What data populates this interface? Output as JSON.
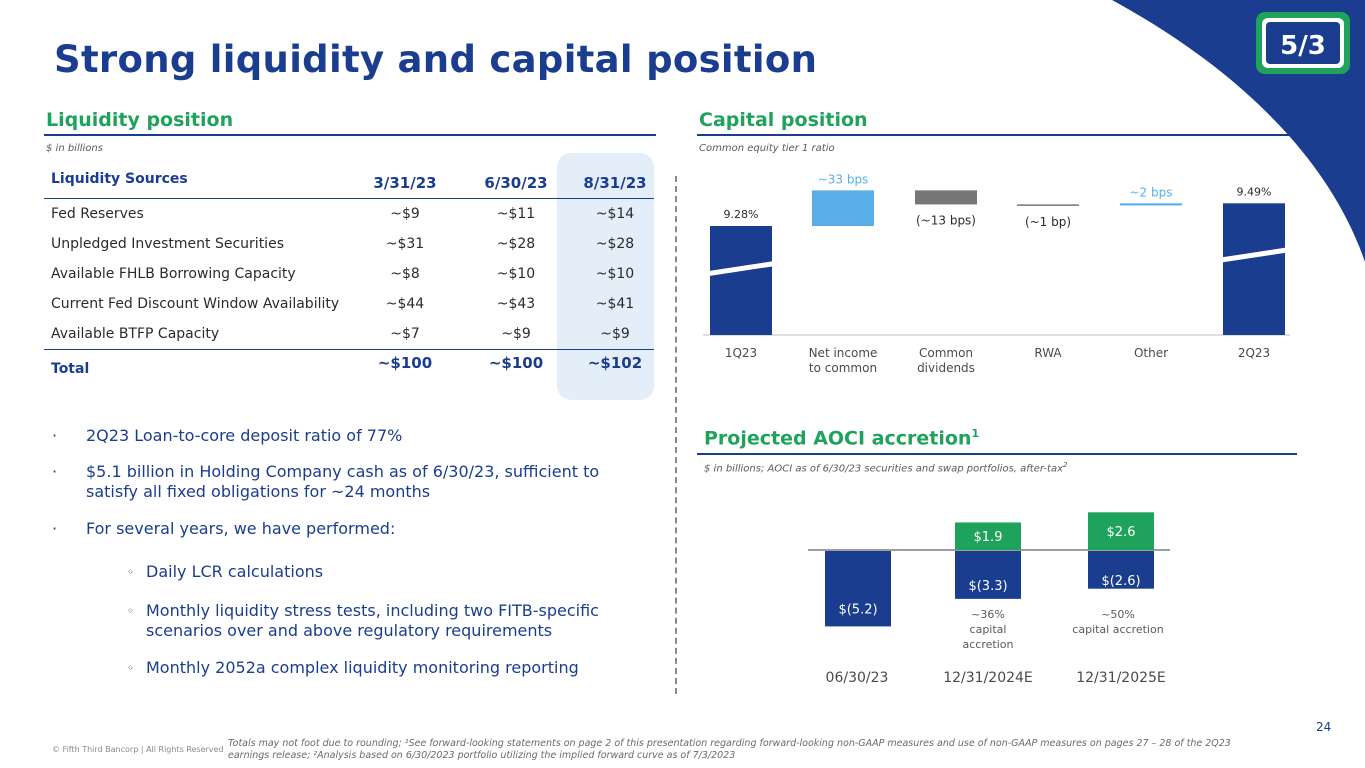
{
  "title": "Strong liquidity and capital position",
  "liquidity": {
    "heading": "Liquidity position",
    "subtitle": "$ in billions",
    "header": {
      "label": "Liquidity Sources",
      "cols": [
        "3/31/23",
        "6/30/23",
        "8/31/23"
      ]
    },
    "rows": [
      {
        "label": "Fed Reserves",
        "values": [
          "~$9",
          "~$11",
          "~$14"
        ]
      },
      {
        "label": "Unpledged Investment Securities",
        "values": [
          "~$31",
          "~$28",
          "~$28"
        ]
      },
      {
        "label": "Available FHLB Borrowing Capacity",
        "values": [
          "~$8",
          "~$10",
          "~$10"
        ]
      },
      {
        "label": "Current Fed Discount Window Availability",
        "values": [
          "~$44",
          "~$43",
          "~$41"
        ]
      },
      {
        "label": "Available BTFP Capacity",
        "values": [
          "~$7",
          "~$9",
          "~$9"
        ]
      }
    ],
    "total": {
      "label": "Total",
      "values": [
        "~$100",
        "~$100",
        "~$102"
      ]
    }
  },
  "bullets": {
    "b1": "2Q23 Loan-to-core deposit ratio of 77%",
    "b2": "$5.1 billion in Holding Company cash as of 6/30/23, sufficient to satisfy all fixed obligations for ~24 months",
    "b3": "For several years, we have performed:",
    "s1": "Daily LCR calculations",
    "s2": "Monthly liquidity stress tests, including two FITB-specific scenarios over and above regulatory requirements",
    "s3": "Monthly 2052a complex liquidity monitoring reporting"
  },
  "capital": {
    "heading": "Capital position",
    "subtitle": "Common equity tier 1 ratio"
  },
  "aoci": {
    "heading": "Projected AOCI accretion",
    "heading_sup": "1",
    "subtitle": "$ in billions; AOCI as of 6/30/23 securities and swap portfolios, after-tax",
    "subtitle_sup": "2"
  },
  "chart_data": [
    {
      "type": "bar",
      "subtype": "waterfall",
      "subtitle": "Common equity tier 1 ratio",
      "categories": [
        "1Q23",
        "Net income to common",
        "Common dividends",
        "RWA",
        "Other",
        "2Q23"
      ],
      "category_lines": [
        [
          "1Q23"
        ],
        [
          "Net income",
          "to common"
        ],
        [
          "Common",
          "dividends"
        ],
        [
          "RWA"
        ],
        [
          "Other"
        ],
        [
          "2Q23"
        ]
      ],
      "values_pct": [
        9.28,
        0.33,
        -0.13,
        -0.01,
        0.02,
        9.49
      ],
      "kinds": [
        "total",
        "change",
        "change",
        "change",
        "change",
        "total"
      ],
      "labels": [
        "9.28%",
        "~33 bps",
        "(~13 bps)",
        "(~1 bp)",
        "~2 bps",
        "9.49%"
      ],
      "axis_break": true,
      "colors": {
        "total": "#1b3d8f",
        "increase": "#5aaee8",
        "decrease": "#777777",
        "label_increase": "#5aaee8"
      }
    },
    {
      "type": "bar",
      "subtype": "stacked",
      "subtitle": "$ in billions; AOCI as of 6/30/23 securities and swap portfolios, after-tax",
      "categories": [
        "06/30/23",
        "12/31/2024E",
        "12/31/2025E"
      ],
      "series": [
        {
          "values": [
            -5.2,
            -3.3,
            -2.6
          ],
          "labels": [
            "$(5.2)",
            "$(3.3)",
            "$(2.6)"
          ],
          "color": "#1b3d8f"
        },
        {
          "values": [
            0,
            1.9,
            2.6
          ],
          "labels": [
            "",
            "$1.9",
            "$2.6"
          ],
          "color": "#1fa35c"
        }
      ],
      "annotations": [
        [],
        [
          "~36%",
          "capital",
          "accretion"
        ],
        [
          "~50%",
          "capital accretion"
        ]
      ],
      "ylim": [
        -5.2,
        2.6
      ]
    }
  ],
  "footer": {
    "footnote": "Totals may not foot due to rounding; ¹See forward-looking statements on page 2 of this presentation regarding forward-looking non-GAAP measures and use of non-GAAP measures on pages 27 – 28 of the 2Q23 earnings release; ²Analysis based on 6/30/2023 portfolio utilizing the implied forward curve as of 7/3/2023",
    "copyright": "© Fifth Third Bancorp | All Rights Reserved",
    "page_number": "24"
  },
  "colors": {
    "navy": "#1b3d8f",
    "green": "#1fa35c",
    "highlight": "#e3eef9"
  },
  "logo": {
    "icon": "fifth-third-logo",
    "text": "5/3"
  }
}
